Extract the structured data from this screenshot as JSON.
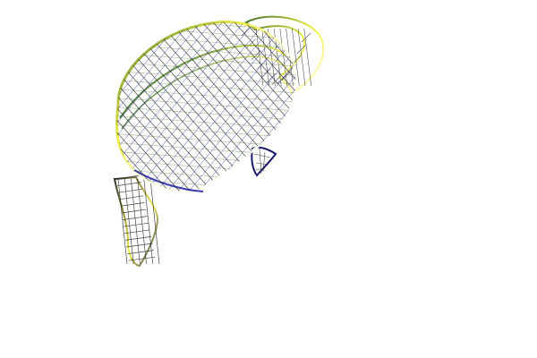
{
  "scene": {
    "background": "#ffffff",
    "object": "teapot",
    "render_style": "wireframe",
    "colors": {
      "dark_green": "#3f6f2a",
      "green": "#6f9a3a",
      "yellow": "#f2f04a",
      "pale": "#ffffe6",
      "white": "#ffffff",
      "blue": "#2a2aa8",
      "navy": "#1b1b6b",
      "line": "#1a1a1a"
    }
  }
}
